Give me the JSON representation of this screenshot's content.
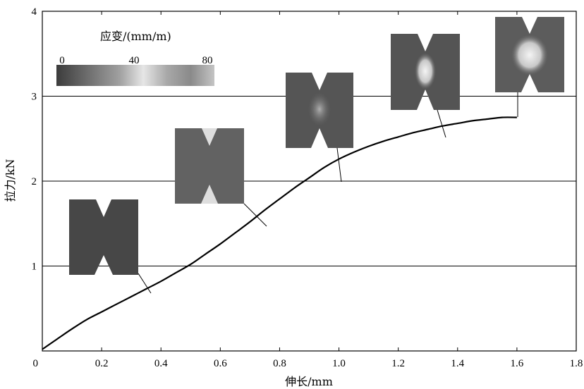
{
  "chart_data": {
    "type": "line",
    "xlabel": "伸长/mm",
    "ylabel": "拉力/kN",
    "xlim": [
      0,
      1.8
    ],
    "ylim": [
      0,
      4
    ],
    "x_ticks": [
      "0",
      "0.2",
      "0.4",
      "0.6",
      "0.8",
      "1.0",
      "1.2",
      "1.4",
      "1.6",
      "1.8"
    ],
    "y_ticks": [
      "0",
      "1",
      "2",
      "3",
      "4"
    ],
    "grid": "horizontal",
    "series": [
      {
        "x": [
          0.0,
          0.05,
          0.1,
          0.15,
          0.2,
          0.25,
          0.3,
          0.35,
          0.4,
          0.45,
          0.5,
          0.55,
          0.6,
          0.65,
          0.7,
          0.75,
          0.8,
          0.85,
          0.9,
          0.95,
          1.0,
          1.05,
          1.1,
          1.15,
          1.2,
          1.25,
          1.3,
          1.35,
          1.4,
          1.45,
          1.5,
          1.55,
          1.6
        ],
        "y": [
          0.02,
          0.14,
          0.26,
          0.37,
          0.46,
          0.55,
          0.64,
          0.73,
          0.82,
          0.92,
          1.02,
          1.14,
          1.26,
          1.39,
          1.52,
          1.66,
          1.79,
          1.92,
          2.04,
          2.16,
          2.26,
          2.34,
          2.41,
          2.47,
          2.52,
          2.57,
          2.61,
          2.65,
          2.68,
          2.71,
          2.73,
          2.75,
          2.75
        ]
      }
    ],
    "colorbar": {
      "title": "应变/(mm/m)",
      "ticks": [
        "0",
        "40",
        "80"
      ],
      "range": [
        0,
        80
      ]
    },
    "strain_images": [
      {
        "x": 0.37,
        "y": 0.7
      },
      {
        "x": 0.77,
        "y": 1.47
      },
      {
        "x": 1.02,
        "y": 1.98
      },
      {
        "x": 1.37,
        "y": 2.5
      },
      {
        "x": 1.61,
        "y": 2.75
      }
    ]
  }
}
